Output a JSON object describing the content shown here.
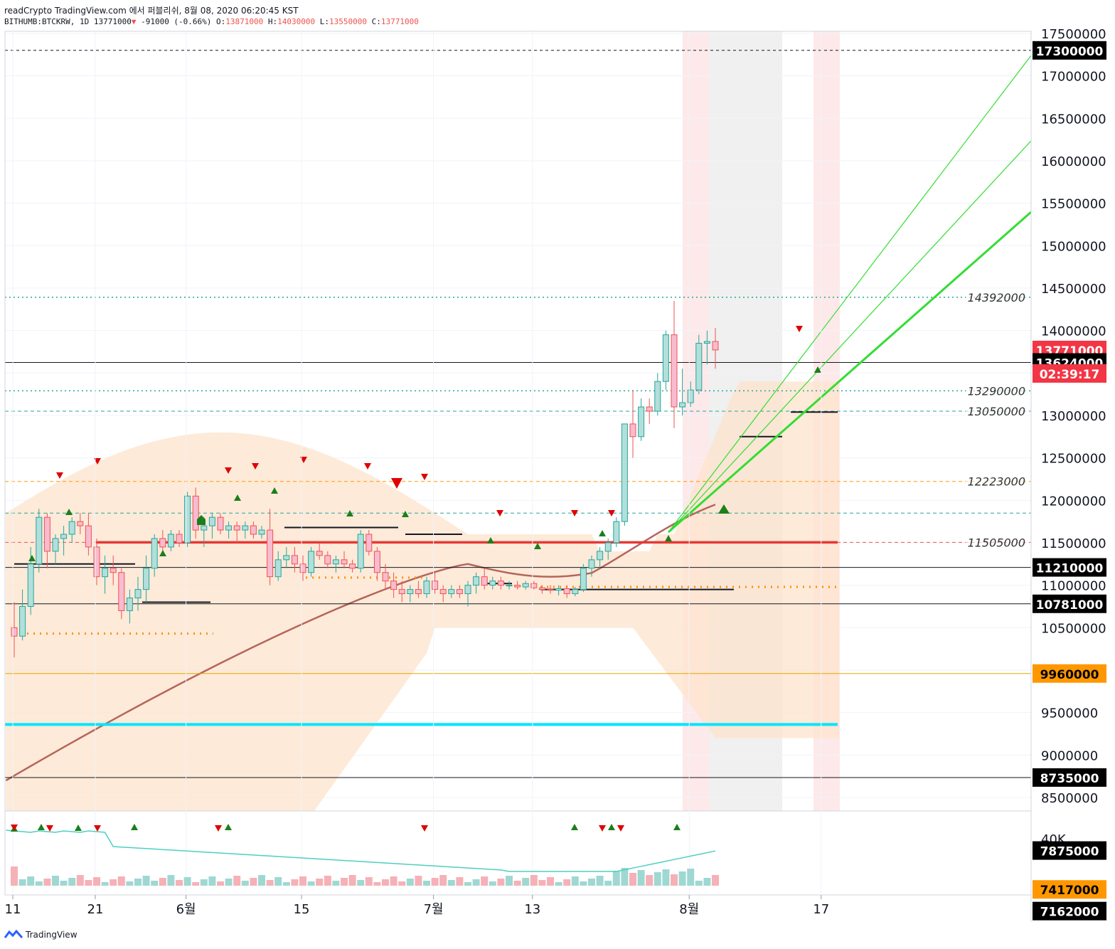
{
  "header": {
    "line1": "readCrypto TradingView.com 에서 퍼블리쉬, 8월 08, 2020 06:20:45 KST",
    "symbol": "BITHUMB:BTCKRW, 1D",
    "last": "13771000",
    "change": "-91000 (-0.66%)",
    "o_label": "O:",
    "o": "13871000",
    "h_label": "H:",
    "h": "14030000",
    "l_label": "L:",
    "l": "13550000",
    "c_label": "C:",
    "c": "13771000"
  },
  "footer": {
    "brand": "TradingView"
  },
  "colors": {
    "up": "#26a69a",
    "down": "#ef5350",
    "cyan": "#00e5ff",
    "dark_green": "#388e3c",
    "bright_green": "#33dd33",
    "orange_badge": "#ff9800",
    "black_badge": "#000000",
    "red_badge": "#f23645",
    "ma_brown": "#b5655a",
    "band_fill": "#fde3cc"
  },
  "chart_data": {
    "type": "candlestick",
    "symbol": "BITHUMB:BTCKRW",
    "interval": "1D",
    "y_axis": {
      "min": 7000000,
      "max": 17600000,
      "ticks": [
        7500000,
        8000000,
        8500000,
        9000000,
        9500000,
        10000000,
        10500000,
        11000000,
        11500000,
        12000000,
        12500000,
        13000000,
        13500000,
        14000000,
        14500000,
        15000000,
        15500000,
        16000000,
        16500000,
        17000000,
        17500000
      ],
      "tick_labels": [
        "",
        "",
        "8500000",
        "9000000",
        "9500000",
        "",
        "10500000",
        "11000000",
        "11500000",
        "12000000",
        "12500000",
        "13000000",
        "",
        "14000000",
        "14500000",
        "15000000",
        "15500000",
        "16000000",
        "16500000",
        "17000000",
        "17500000"
      ]
    },
    "x_axis": {
      "labels": [
        "11",
        "21",
        "6월",
        "15",
        "7월",
        "13",
        "8월",
        "17"
      ],
      "label_day_index": [
        0,
        10,
        21,
        35,
        51,
        63,
        82,
        98
      ]
    },
    "badges": [
      {
        "value": 17300000,
        "label": "17300000",
        "style": "black"
      },
      {
        "value": 13771000,
        "label": "13771000",
        "style": "red"
      },
      {
        "value": 13624000,
        "label": "13624000",
        "style": "black"
      },
      {
        "value": 11210000,
        "label": "11210000",
        "style": "black"
      },
      {
        "value": 10781000,
        "label": "10781000",
        "style": "black"
      },
      {
        "value": 9960000,
        "label": "9960000",
        "style": "orange"
      },
      {
        "value": 8735000,
        "label": "8735000",
        "style": "black"
      },
      {
        "value": 7875000,
        "label": "7875000",
        "style": "black"
      },
      {
        "value": 7417000,
        "label": "7417000",
        "style": "orange"
      },
      {
        "value": 7162000,
        "label": "7162000",
        "style": "black"
      }
    ],
    "countdown": "02:39:17",
    "level_labels": [
      {
        "value": 14392000,
        "label": "14392000"
      },
      {
        "value": 13290000,
        "label": "13290000"
      },
      {
        "value": 13050000,
        "label": "13050000"
      },
      {
        "value": 12223000,
        "label": "12223000"
      },
      {
        "value": 11505000,
        "label": "11505000"
      }
    ],
    "volume_axis": {
      "ticks": [
        "40K",
        "0"
      ]
    },
    "candles": [
      [
        10500000,
        10800000,
        10150000,
        10400000
      ],
      [
        10400000,
        10950000,
        10350000,
        10750000
      ],
      [
        10750000,
        11450000,
        10650000,
        11250000
      ],
      [
        11250000,
        11900000,
        11150000,
        11800000
      ],
      [
        11800000,
        11850000,
        11200000,
        11400000
      ],
      [
        11400000,
        11600000,
        11250000,
        11550000
      ],
      [
        11550000,
        11700000,
        11350000,
        11600000
      ],
      [
        11600000,
        11800000,
        11500000,
        11750000
      ],
      [
        11750000,
        11850000,
        11600000,
        11700000
      ],
      [
        11700000,
        11850000,
        11350000,
        11450000
      ],
      [
        11450000,
        11550000,
        11000000,
        11100000
      ],
      [
        11100000,
        11350000,
        10900000,
        11200000
      ],
      [
        11200000,
        11350000,
        11000000,
        11150000
      ],
      [
        11150000,
        11200000,
        10600000,
        10700000
      ],
      [
        10700000,
        10950000,
        10550000,
        10850000
      ],
      [
        10850000,
        11100000,
        10700000,
        10950000
      ],
      [
        10950000,
        11350000,
        10800000,
        11200000
      ],
      [
        11200000,
        11600000,
        11100000,
        11550000
      ],
      [
        11550000,
        11650000,
        11350000,
        11450000
      ],
      [
        11450000,
        11650000,
        11400000,
        11600000
      ],
      [
        11600000,
        11650000,
        11450000,
        11500000
      ],
      [
        11500000,
        12100000,
        11450000,
        12050000
      ],
      [
        12050000,
        12150000,
        11550000,
        11650000
      ],
      [
        11650000,
        11800000,
        11450000,
        11700000
      ],
      [
        11700000,
        11850000,
        11550000,
        11800000
      ],
      [
        11800000,
        11850000,
        11600000,
        11650000
      ],
      [
        11650000,
        11750000,
        11550000,
        11700000
      ],
      [
        11700000,
        11750000,
        11500000,
        11650000
      ],
      [
        11650000,
        11750000,
        11550000,
        11700000
      ],
      [
        11700000,
        11750000,
        11550000,
        11600000
      ],
      [
        11600000,
        11700000,
        11550000,
        11650000
      ],
      [
        11650000,
        11900000,
        11000000,
        11100000
      ],
      [
        11100000,
        11400000,
        11050000,
        11300000
      ],
      [
        11300000,
        11450000,
        11200000,
        11350000
      ],
      [
        11350000,
        11450000,
        11150000,
        11250000
      ],
      [
        11250000,
        11350000,
        11050000,
        11150000
      ],
      [
        11150000,
        11450000,
        11100000,
        11400000
      ],
      [
        11400000,
        11500000,
        11300000,
        11350000
      ],
      [
        11350000,
        11400000,
        11200000,
        11250000
      ],
      [
        11250000,
        11350000,
        11150000,
        11300000
      ],
      [
        11300000,
        11400000,
        11200000,
        11250000
      ],
      [
        11250000,
        11300000,
        11150000,
        11200000
      ],
      [
        11200000,
        11650000,
        11150000,
        11600000
      ],
      [
        11600000,
        11650000,
        11350000,
        11400000
      ],
      [
        11400000,
        11450000,
        11050000,
        11150000
      ],
      [
        11150000,
        11250000,
        10950000,
        11050000
      ],
      [
        11050000,
        11150000,
        10850000,
        10950000
      ],
      [
        10950000,
        11050000,
        10800000,
        10900000
      ],
      [
        10900000,
        11000000,
        10800000,
        10950000
      ],
      [
        10950000,
        11050000,
        10850000,
        10900000
      ],
      [
        10900000,
        11100000,
        10850000,
        11050000
      ],
      [
        11050000,
        11150000,
        10900000,
        10950000
      ],
      [
        10950000,
        11000000,
        10800000,
        10900000
      ],
      [
        10900000,
        11000000,
        10850000,
        10950000
      ],
      [
        10950000,
        11000000,
        10850000,
        10900000
      ],
      [
        10900000,
        11050000,
        10750000,
        11000000
      ],
      [
        11000000,
        11150000,
        10900000,
        11100000
      ],
      [
        11100000,
        11200000,
        10950000,
        11000000
      ],
      [
        11000000,
        11100000,
        10950000,
        11050000
      ],
      [
        11050000,
        11100000,
        10950000,
        11000000
      ],
      [
        11000000,
        11050000,
        10950000,
        11000000
      ],
      [
        11000000,
        11050000,
        10950000,
        10980000
      ],
      [
        10980000,
        11050000,
        10950000,
        11020000
      ],
      [
        11020000,
        11050000,
        10950000,
        10970000
      ],
      [
        10970000,
        11000000,
        10900000,
        10950000
      ],
      [
        10950000,
        11000000,
        10900000,
        10940000
      ],
      [
        10940000,
        11000000,
        10880000,
        10960000
      ],
      [
        10960000,
        11000000,
        10850000,
        10900000
      ],
      [
        10900000,
        10980000,
        10870000,
        10950000
      ],
      [
        10950000,
        11250000,
        10920000,
        11200000
      ],
      [
        11200000,
        11350000,
        11100000,
        11300000
      ],
      [
        11300000,
        11450000,
        11200000,
        11400000
      ],
      [
        11400000,
        11550000,
        11300000,
        11500000
      ],
      [
        11500000,
        11800000,
        11450000,
        11750000
      ],
      [
        11750000,
        12900000,
        11700000,
        12900000
      ],
      [
        12900000,
        13300000,
        12500000,
        12750000
      ],
      [
        12750000,
        13200000,
        12700000,
        13100000
      ],
      [
        13100000,
        13200000,
        12900000,
        13050000
      ],
      [
        13050000,
        13500000,
        13000000,
        13400000
      ],
      [
        13400000,
        14000000,
        13300000,
        13950000
      ],
      [
        13950000,
        14350000,
        12850000,
        13100000
      ],
      [
        13100000,
        13550000,
        13000000,
        13150000
      ],
      [
        13150000,
        13400000,
        13100000,
        13300000
      ],
      [
        13300000,
        13950000,
        13250000,
        13850000
      ],
      [
        13850000,
        14000000,
        13600000,
        13871000
      ],
      [
        13871000,
        14030000,
        13550000,
        13771000
      ]
    ]
  }
}
